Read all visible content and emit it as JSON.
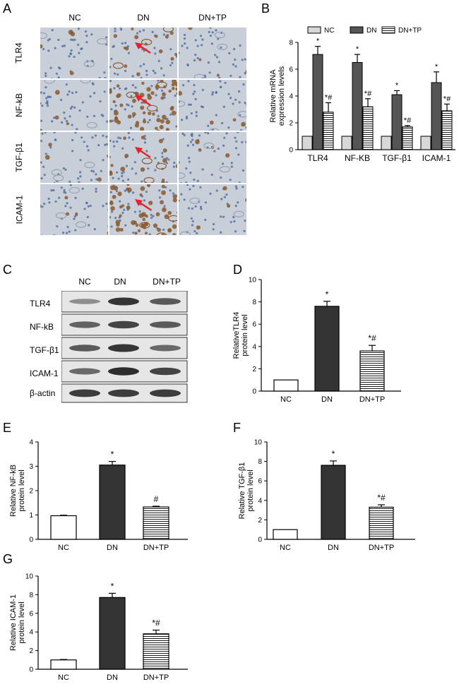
{
  "panels": {
    "A": "A",
    "B": "B",
    "C": "C",
    "D": "D",
    "E": "E",
    "F": "F",
    "G": "G"
  },
  "ihc": {
    "columns": [
      "NC",
      "DN",
      "DN+TP"
    ],
    "rows": [
      "TLR4",
      "NF-kB",
      "TGF-β1",
      "ICAM-1"
    ],
    "colors": {
      "background": "#c9cfd8",
      "nuclei": "#4d6b9e",
      "brown": "#8a5a2e",
      "arrow": "#e8212b"
    }
  },
  "western": {
    "lanes": [
      "NC",
      "DN",
      "DN+TP"
    ],
    "proteins": [
      "TLR4",
      "NF-kB",
      "TGF-β1",
      "ICAM-1",
      "β-actin"
    ]
  },
  "chart_data": [
    {
      "id": "B",
      "type": "bar",
      "ylabel": "Relative mRNA expression levels",
      "ylim": [
        0,
        8
      ],
      "yticks": [
        0,
        2,
        4,
        6,
        8
      ],
      "categories": [
        "TLR4",
        "NF-KB",
        "TGF-β1",
        "ICAM-1"
      ],
      "legend": [
        "NC",
        "DN",
        "DN+TP"
      ],
      "legend_position": "top",
      "series": [
        {
          "name": "NC",
          "values": [
            1,
            1,
            1,
            1
          ],
          "errors": [
            0,
            0,
            0,
            0
          ],
          "fill": "#d8d8d8",
          "pattern": "solid",
          "marks": [
            "",
            "",
            "",
            ""
          ]
        },
        {
          "name": "DN",
          "values": [
            7.1,
            6.5,
            4.1,
            5.0
          ],
          "errors": [
            0.6,
            0.6,
            0.3,
            0.8
          ],
          "fill": "#555555",
          "pattern": "solid",
          "marks": [
            "*",
            "*",
            "*",
            "*"
          ]
        },
        {
          "name": "DN+TP",
          "values": [
            2.8,
            3.2,
            1.7,
            2.9
          ],
          "errors": [
            0.7,
            0.6,
            0.1,
            0.5
          ],
          "fill": "#ffffff",
          "pattern": "hstripe",
          "marks": [
            "*#",
            "*#",
            "*#",
            "*#"
          ]
        }
      ]
    },
    {
      "id": "D",
      "type": "bar",
      "ylabel": "RelativeTLR4 protein level",
      "ylim": [
        0,
        10
      ],
      "yticks": [
        0,
        2,
        4,
        6,
        8,
        10
      ],
      "categories": [
        "NC",
        "DN",
        "DN+TP"
      ],
      "values": [
        1.0,
        7.6,
        3.6
      ],
      "errors": [
        0,
        0.45,
        0.5
      ],
      "marks": [
        "",
        "*",
        "*#"
      ]
    },
    {
      "id": "E",
      "type": "bar",
      "ylabel": "Relative NF-kB protein level",
      "ylim": [
        0,
        4
      ],
      "yticks": [
        0,
        1,
        2,
        3,
        4
      ],
      "categories": [
        "NC",
        "DN",
        "DN+TP"
      ],
      "values": [
        0.97,
        3.05,
        1.33
      ],
      "errors": [
        0.02,
        0.15,
        0.03
      ],
      "marks": [
        "",
        "*",
        "#"
      ]
    },
    {
      "id": "F",
      "type": "bar",
      "ylabel": "Relative TGF-β1 protein level",
      "ylim": [
        0,
        10
      ],
      "yticks": [
        0,
        2,
        4,
        6,
        8,
        10
      ],
      "categories": [
        "NC",
        "DN",
        "DN+TP"
      ],
      "values": [
        1.0,
        7.6,
        3.3
      ],
      "errors": [
        0,
        0.45,
        0.25
      ],
      "marks": [
        "",
        "*",
        "*#"
      ]
    },
    {
      "id": "G",
      "type": "bar",
      "ylabel": "Relative ICAM-1 protein level",
      "ylim": [
        0,
        10
      ],
      "yticks": [
        0,
        2,
        4,
        6,
        8,
        10
      ],
      "categories": [
        "NC",
        "DN",
        "DN+TP"
      ],
      "values": [
        1.0,
        7.7,
        3.8
      ],
      "errors": [
        0.05,
        0.45,
        0.4
      ],
      "marks": [
        "",
        "*",
        "*#"
      ]
    }
  ]
}
